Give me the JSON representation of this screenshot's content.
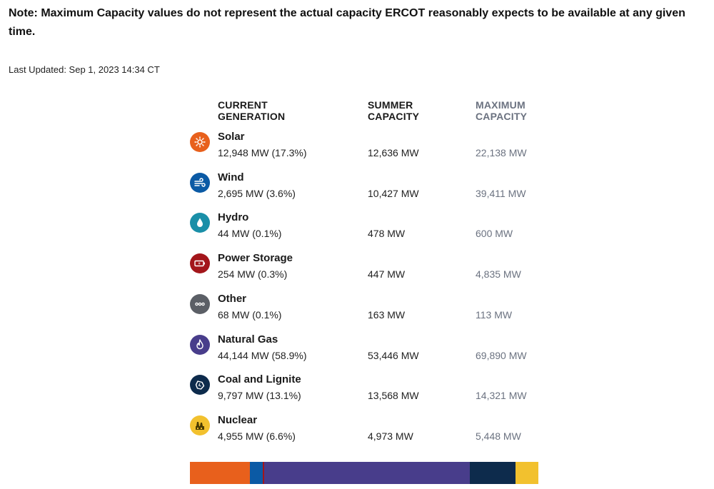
{
  "note": "Note: Maximum Capacity values do not represent the actual capacity ERCOT reasonably expects to be available at any given time.",
  "last_updated": "Last Updated: Sep 1, 2023 14:34 CT",
  "headers": {
    "current": "CURRENT\nGENERATION",
    "summer": "SUMMER\nCAPACITY",
    "maximum": "MAXIMUM\nCAPACITY"
  },
  "rows": [
    {
      "name": "Solar",
      "generation": "12,948 MW (17.3%)",
      "summer": "12,636 MW",
      "maximum": "22,138 MW",
      "icon": "sun-icon",
      "color": "#e8601c",
      "share": 17.3
    },
    {
      "name": "Wind",
      "generation": "2,695 MW (3.6%)",
      "summer": "10,427 MW",
      "maximum": "39,411 MW",
      "icon": "wind-icon",
      "color": "#0b5aa5",
      "share": 3.6
    },
    {
      "name": "Hydro",
      "generation": "44 MW (0.1%)",
      "summer": "478 MW",
      "maximum": "600 MW",
      "icon": "water-drop-icon",
      "color": "#1a8fa8",
      "share": 0.1
    },
    {
      "name": "Power Storage",
      "generation": "254 MW (0.3%)",
      "summer": "447 MW",
      "maximum": "4,835 MW",
      "icon": "battery-icon",
      "color": "#a3161b",
      "share": 0.3
    },
    {
      "name": "Other",
      "generation": "68 MW (0.1%)",
      "summer": "163 MW",
      "maximum": "113 MW",
      "icon": "ellipsis-icon",
      "color": "#5b5f66",
      "share": 0.1
    },
    {
      "name": "Natural Gas",
      "generation": "44,144 MW (58.9%)",
      "summer": "53,446 MW",
      "maximum": "69,890 MW",
      "icon": "flame-icon",
      "color": "#483d8b",
      "share": 58.9
    },
    {
      "name": "Coal and Lignite",
      "generation": "9,797 MW (13.1%)",
      "summer": "13,568 MW",
      "maximum": "14,321 MW",
      "icon": "coal-icon",
      "color": "#0d2b4c",
      "share": 13.1
    },
    {
      "name": "Nuclear",
      "generation": "4,955 MW (6.6%)",
      "summer": "4,973 MW",
      "maximum": "5,448 MW",
      "icon": "nuclear-plant-icon",
      "color": "#f2c12e",
      "share": 6.6
    }
  ]
}
